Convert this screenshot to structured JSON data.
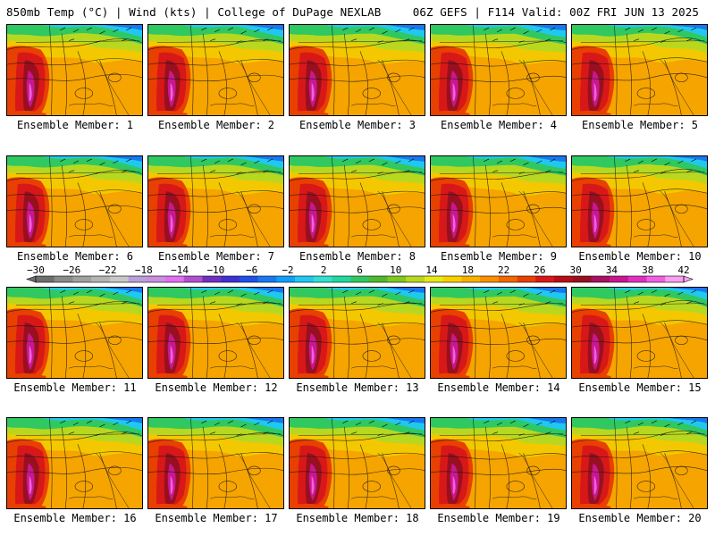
{
  "header": {
    "left": "850mb Temp (°C) | Wind (kts) | College of DuPage NEXLAB",
    "right": "06Z GEFS | F114 Valid: 00Z FRI JUN 13 2025"
  },
  "panels": [
    {
      "member": 1,
      "caption": "Ensemble Member: 1"
    },
    {
      "member": 2,
      "caption": "Ensemble Member: 2"
    },
    {
      "member": 3,
      "caption": "Ensemble Member: 3"
    },
    {
      "member": 4,
      "caption": "Ensemble Member: 4"
    },
    {
      "member": 5,
      "caption": "Ensemble Member: 5"
    },
    {
      "member": 6,
      "caption": "Ensemble Member: 6"
    },
    {
      "member": 7,
      "caption": "Ensemble Member: 7"
    },
    {
      "member": 8,
      "caption": "Ensemble Member: 8"
    },
    {
      "member": 9,
      "caption": "Ensemble Member: 9"
    },
    {
      "member": 10,
      "caption": "Ensemble Member: 10"
    },
    {
      "member": 11,
      "caption": "Ensemble Member: 11"
    },
    {
      "member": 12,
      "caption": "Ensemble Member: 12"
    },
    {
      "member": 13,
      "caption": "Ensemble Member: 13"
    },
    {
      "member": 14,
      "caption": "Ensemble Member: 14"
    },
    {
      "member": 15,
      "caption": "Ensemble Member: 15"
    },
    {
      "member": 16,
      "caption": "Ensemble Member: 16"
    },
    {
      "member": 17,
      "caption": "Ensemble Member: 17"
    },
    {
      "member": 18,
      "caption": "Ensemble Member: 18"
    },
    {
      "member": 19,
      "caption": "Ensemble Member: 19"
    },
    {
      "member": 20,
      "caption": "Ensemble Member: 20"
    }
  ],
  "colorbar": {
    "labels": [
      "−30",
      "−26",
      "−22",
      "−18",
      "−14",
      "−10",
      "−6",
      "−2",
      "2",
      "6",
      "10",
      "14",
      "18",
      "22",
      "26",
      "30",
      "34",
      "38",
      "42"
    ],
    "colors": [
      "#6e6e6e",
      "#8a8a8a",
      "#a0a0a0",
      "#b4b4b4",
      "#c8c8c8",
      "#b9a0d8",
      "#c890e0",
      "#e070f0",
      "#b050d0",
      "#7030c0",
      "#4030d0",
      "#2050e8",
      "#1878f0",
      "#10a0f8",
      "#20c8f0",
      "#30e0d0",
      "#20d8a0",
      "#30c860",
      "#50b830",
      "#80c820",
      "#b8d820",
      "#e8e818",
      "#f8d000",
      "#f8b000",
      "#f89000",
      "#f06800",
      "#e84000",
      "#d81818",
      "#b80c18",
      "#981020",
      "#a81060",
      "#c81890",
      "#e030c0",
      "#f060e0",
      "#f8a0f0"
    ]
  }
}
